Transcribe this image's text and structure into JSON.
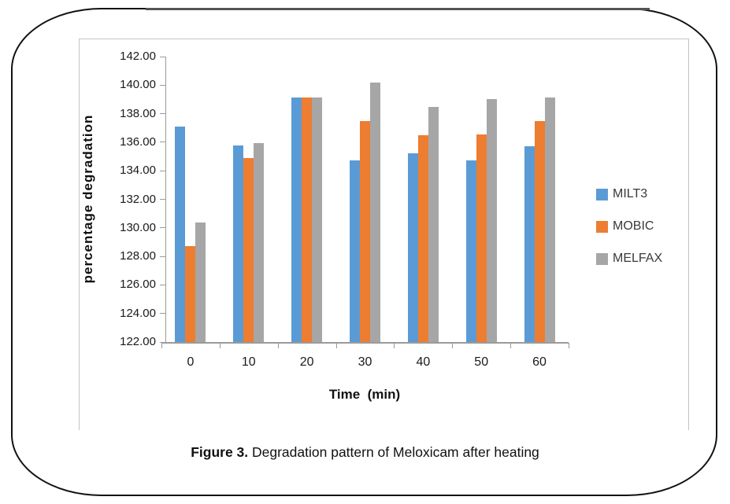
{
  "figure": {
    "caption_label": "Figure 3.",
    "caption_text": " Degradation pattern of Meloxicam after heating"
  },
  "chart_data": {
    "type": "bar",
    "title": "",
    "xlabel": "Time  (min)",
    "ylabel": "percentage degradation",
    "categories": [
      "0",
      "10",
      "20",
      "30",
      "40",
      "50",
      "60"
    ],
    "series": [
      {
        "name": "MILT3",
        "color": "#5B9BD5",
        "values": [
          137.1,
          135.75,
          139.15,
          134.7,
          135.2,
          134.7,
          135.7
        ]
      },
      {
        "name": "MOBIC",
        "color": "#ED7D31",
        "values": [
          128.7,
          134.9,
          139.15,
          137.5,
          136.5,
          136.55,
          137.5
        ]
      },
      {
        "name": "MELFAX",
        "color": "#A6A6A6",
        "values": [
          130.35,
          135.95,
          139.15,
          140.2,
          138.45,
          139.0,
          139.15
        ]
      }
    ],
    "ylim": [
      122,
      142
    ],
    "ytick_step": 2,
    "ytick_labels": [
      "142.00",
      "140.00",
      "138.00",
      "136.00",
      "134.00",
      "132.00",
      "130.00",
      "128.00",
      "126.00",
      "124.00",
      "122.00"
    ],
    "grid": false,
    "legend_position": "right",
    "axis_color": "#9a9a9a"
  }
}
